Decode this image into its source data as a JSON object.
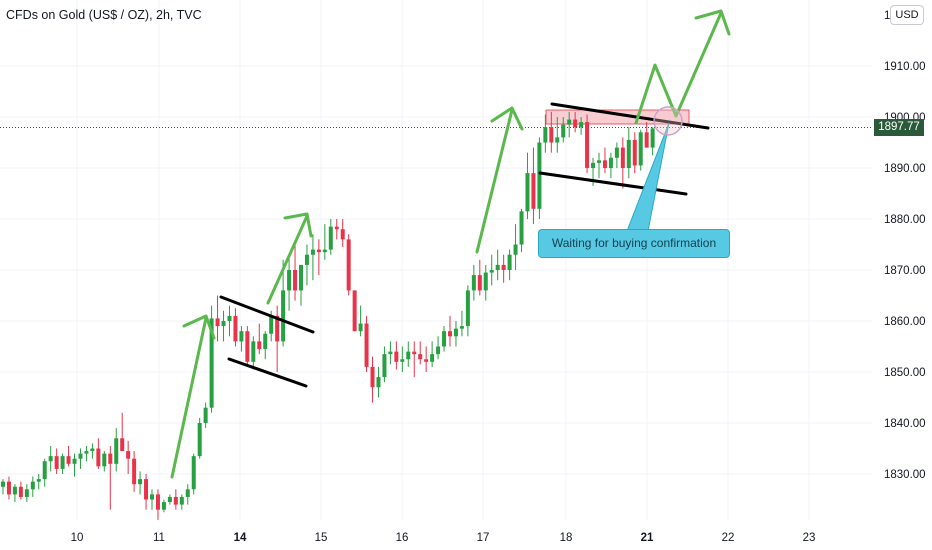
{
  "header": {
    "symbol_title": "CFDs on Gold (US$ / OZ), 2h, TVC"
  },
  "currency_button": "USD",
  "top_tick_partial": "1",
  "last_price": "1897.77",
  "annotation": {
    "text": "Waiting for buying confirmation"
  },
  "colors": {
    "up": "#26a041",
    "down": "#e8334a",
    "arrow": "#5bb84d",
    "zone": "#f7c6cb",
    "callout": "#58c9e3",
    "price_tag": "#2a5a3a"
  },
  "chart_data": {
    "type": "candlestick",
    "y_ticks": [
      "1830.00",
      "1840.00",
      "1850.00",
      "1860.00",
      "1870.00",
      "1880.00",
      "1890.00",
      "1900.00",
      "1910.00"
    ],
    "x_ticks": [
      {
        "label": "10",
        "bold": false
      },
      {
        "label": "11",
        "bold": false
      },
      {
        "label": "14",
        "bold": true
      },
      {
        "label": "15",
        "bold": false
      },
      {
        "label": "16",
        "bold": false
      },
      {
        "label": "17",
        "bold": false
      },
      {
        "label": "18",
        "bold": false
      },
      {
        "label": "21",
        "bold": true
      },
      {
        "label": "22",
        "bold": false
      },
      {
        "label": "23",
        "bold": false
      }
    ],
    "ylim": [
      1819,
      1923
    ],
    "last_price": 1897.77,
    "candles": [
      [
        1827.5,
        1829,
        1826,
        1828.5
      ],
      [
        1828.5,
        1829.5,
        1825,
        1826
      ],
      [
        1826,
        1828,
        1824.5,
        1827.5
      ],
      [
        1827.5,
        1828.5,
        1825,
        1825.5
      ],
      [
        1825.5,
        1828,
        1824.5,
        1827
      ],
      [
        1827,
        1829.5,
        1825.5,
        1828.5
      ],
      [
        1828.5,
        1830,
        1827,
        1829
      ],
      [
        1829,
        1833,
        1827.5,
        1832.5
      ],
      [
        1832.5,
        1835.5,
        1830.5,
        1833.5
      ],
      [
        1833.5,
        1835,
        1830,
        1831
      ],
      [
        1831,
        1834,
        1830,
        1833.5
      ],
      [
        1833.5,
        1835.5,
        1831.5,
        1832
      ],
      [
        1832,
        1834,
        1829.5,
        1833
      ],
      [
        1833,
        1835,
        1831,
        1834
      ],
      [
        1834,
        1835.5,
        1832.5,
        1834.5
      ],
      [
        1834.5,
        1836,
        1833,
        1835
      ],
      [
        1835,
        1837,
        1831,
        1831.5
      ],
      [
        1831.5,
        1834.5,
        1830.5,
        1834
      ],
      [
        1834,
        1835.5,
        1823,
        1832
      ],
      [
        1832,
        1839,
        1830.5,
        1837
      ],
      [
        1837,
        1842,
        1834.5,
        1834.5
      ],
      [
        1834.5,
        1836.5,
        1830,
        1833
      ],
      [
        1833,
        1834.5,
        1826.5,
        1828
      ],
      [
        1828,
        1830.5,
        1826,
        1829
      ],
      [
        1829,
        1830,
        1823,
        1825
      ],
      [
        1825,
        1827,
        1823,
        1826
      ],
      [
        1826,
        1827,
        1821,
        1823
      ],
      [
        1823,
        1825,
        1822.5,
        1824.5
      ],
      [
        1824.5,
        1826,
        1824,
        1825.5
      ],
      [
        1825.5,
        1827,
        1823,
        1824
      ],
      [
        1824,
        1826,
        1823,
        1825.5
      ],
      [
        1825.5,
        1828,
        1824,
        1827
      ],
      [
        1827,
        1834,
        1826,
        1833.5
      ],
      [
        1833.5,
        1841,
        1833,
        1840
      ],
      [
        1840,
        1844,
        1839,
        1843
      ],
      [
        1843,
        1863,
        1842,
        1860.5
      ],
      [
        1860.5,
        1865,
        1856,
        1859
      ],
      [
        1859,
        1862,
        1856,
        1860
      ],
      [
        1860,
        1863,
        1857,
        1861
      ],
      [
        1861,
        1862.5,
        1855,
        1856
      ],
      [
        1856,
        1859,
        1854,
        1858
      ],
      [
        1858,
        1859,
        1851,
        1852
      ],
      [
        1852,
        1857,
        1850.5,
        1856
      ],
      [
        1856,
        1859.5,
        1853.5,
        1854.5
      ],
      [
        1854.5,
        1858,
        1852.5,
        1857.5
      ],
      [
        1857.5,
        1862,
        1856,
        1861
      ],
      [
        1861,
        1863,
        1850,
        1856
      ],
      [
        1856,
        1872,
        1855,
        1866
      ],
      [
        1866,
        1873,
        1862,
        1870
      ],
      [
        1870,
        1875,
        1864,
        1866
      ],
      [
        1866,
        1871,
        1863,
        1871
      ],
      [
        1871,
        1875,
        1867,
        1873
      ],
      [
        1873,
        1877,
        1868,
        1874
      ],
      [
        1874,
        1876,
        1869,
        1873.5
      ],
      [
        1873.5,
        1879,
        1872,
        1874
      ],
      [
        1874,
        1880,
        1873,
        1878.5
      ],
      [
        1878.5,
        1880,
        1876,
        1878
      ],
      [
        1878,
        1880,
        1874.5,
        1876
      ],
      [
        1876,
        1877,
        1865,
        1866
      ],
      [
        1866,
        1866,
        1858,
        1858
      ],
      [
        1858,
        1863,
        1857,
        1859.5
      ],
      [
        1859.5,
        1861,
        1850,
        1851
      ],
      [
        1851,
        1853,
        1844,
        1847
      ],
      [
        1847,
        1851,
        1845,
        1849
      ],
      [
        1849,
        1855,
        1848,
        1853.5
      ],
      [
        1853.5,
        1856,
        1851.5,
        1854
      ],
      [
        1854,
        1856,
        1850.5,
        1852
      ],
      [
        1852,
        1855,
        1850,
        1852.5
      ],
      [
        1852.5,
        1856,
        1851,
        1854
      ],
      [
        1854,
        1856,
        1849,
        1853.5
      ],
      [
        1853.5,
        1856,
        1851.5,
        1852.5
      ],
      [
        1852.5,
        1855,
        1850,
        1852
      ],
      [
        1852,
        1856,
        1851,
        1853.5
      ],
      [
        1853.5,
        1857,
        1852.5,
        1855
      ],
      [
        1855,
        1859,
        1854,
        1858
      ],
      [
        1858,
        1861,
        1855,
        1857
      ],
      [
        1857,
        1860,
        1855,
        1858.5
      ],
      [
        1858.5,
        1862,
        1857,
        1859
      ],
      [
        1859,
        1867,
        1857,
        1866
      ],
      [
        1866,
        1871,
        1864,
        1869
      ],
      [
        1869,
        1872,
        1865,
        1866
      ],
      [
        1866,
        1871,
        1864,
        1869.5
      ],
      [
        1869.5,
        1873,
        1867,
        1870
      ],
      [
        1870,
        1874,
        1868,
        1871
      ],
      [
        1871,
        1873,
        1867.5,
        1870
      ],
      [
        1870,
        1874,
        1868,
        1873
      ],
      [
        1873,
        1879,
        1870,
        1875
      ],
      [
        1875,
        1882,
        1873.5,
        1881.5
      ],
      [
        1881.5,
        1893,
        1880,
        1889
      ],
      [
        1889,
        1894,
        1879,
        1882
      ],
      [
        1882,
        1896,
        1880,
        1895
      ],
      [
        1895,
        1900.5,
        1893,
        1898
      ],
      [
        1898,
        1901,
        1893,
        1895
      ],
      [
        1895,
        1900,
        1893,
        1896
      ],
      [
        1896,
        1900,
        1895,
        1898.5
      ],
      [
        1898.5,
        1901,
        1896,
        1899.5
      ],
      [
        1899.5,
        1901,
        1897,
        1898
      ],
      [
        1898,
        1900,
        1896.5,
        1899
      ],
      [
        1899,
        1900.5,
        1889,
        1890
      ],
      [
        1890,
        1892,
        1886.5,
        1891
      ],
      [
        1891,
        1893,
        1888,
        1891.5
      ],
      [
        1891.5,
        1894,
        1889,
        1890
      ],
      [
        1890,
        1893,
        1888,
        1892
      ],
      [
        1892,
        1895,
        1890,
        1894
      ],
      [
        1894,
        1896,
        1886,
        1890
      ],
      [
        1890,
        1898,
        1888,
        1895.5
      ],
      [
        1895.5,
        1897,
        1889,
        1890.5
      ],
      [
        1890.5,
        1897.5,
        1889.5,
        1897
      ],
      [
        1897,
        1899,
        1894,
        1894
      ],
      [
        1894,
        1898,
        1892.5,
        1897.77
      ]
    ]
  }
}
